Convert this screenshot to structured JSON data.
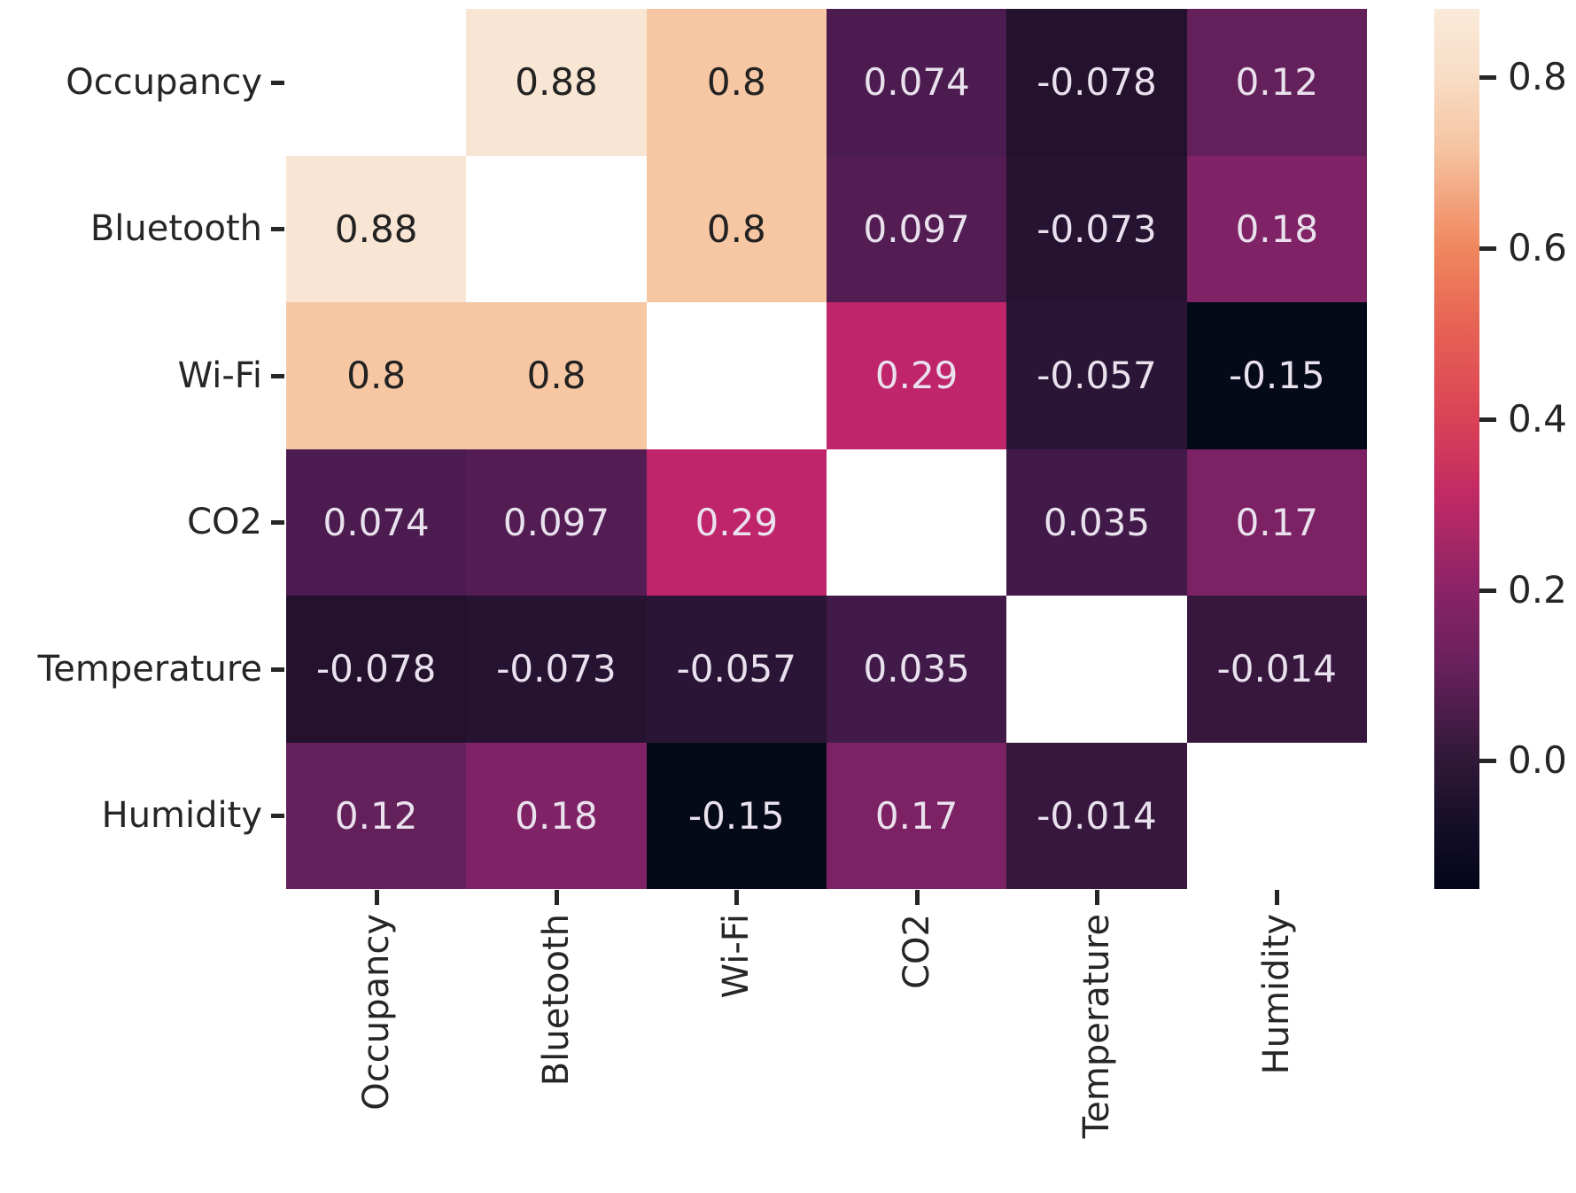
{
  "chart_data": {
    "type": "heatmap",
    "title": "",
    "variables": [
      "Occupancy",
      "Bluetooth",
      "Wi-Fi",
      "CO2",
      "Temperature",
      "Humidity"
    ],
    "y_tick_labels": [
      "Occupancy",
      "Bluetooth",
      "Wi-Fi",
      "CO2",
      "Temperature",
      "Humidity"
    ],
    "x_tick_labels": [
      "Occupancy",
      "Bluetooth",
      "Wi-Fi",
      "CO2",
      "Temperature",
      "Humidity"
    ],
    "matrix": [
      [
        null,
        0.88,
        0.8,
        0.074,
        -0.078,
        0.12
      ],
      [
        0.88,
        null,
        0.8,
        0.097,
        -0.073,
        0.18
      ],
      [
        0.8,
        0.8,
        null,
        0.29,
        -0.057,
        -0.15
      ],
      [
        0.074,
        0.097,
        0.29,
        null,
        0.035,
        0.17
      ],
      [
        -0.078,
        -0.073,
        -0.057,
        0.035,
        null,
        -0.014
      ],
      [
        0.12,
        0.18,
        -0.15,
        0.17,
        -0.014,
        null
      ]
    ],
    "cell_labels": [
      [
        "",
        "0.88",
        "0.8",
        "0.074",
        "-0.078",
        "0.12"
      ],
      [
        "0.88",
        "",
        "0.8",
        "0.097",
        "-0.073",
        "0.18"
      ],
      [
        "0.8",
        "0.8",
        "",
        "0.29",
        "-0.057",
        "-0.15"
      ],
      [
        "0.074",
        "0.097",
        "0.29",
        "",
        "0.035",
        "0.17"
      ],
      [
        "-0.078",
        "-0.073",
        "-0.057",
        "0.035",
        "",
        "-0.014"
      ],
      [
        "0.12",
        "0.18",
        "-0.15",
        "0.17",
        "-0.014",
        ""
      ]
    ],
    "cell_colors": [
      [
        "",
        "#f8e5d3",
        "#f6c7a2",
        "#4c1c50",
        "#23112d",
        "#63205a"
      ],
      [
        "#f8e5d3",
        "",
        "#f6c7a2",
        "#531d54",
        "#261231",
        "#7f2366"
      ],
      [
        "#f6c7a2",
        "#f6c7a2",
        "",
        "#c0246a",
        "#2a1536",
        "#050a18"
      ],
      [
        "#4c1c50",
        "#531d54",
        "#c0246a",
        "",
        "#421a4a",
        "#7b2164"
      ],
      [
        "#23112d",
        "#261231",
        "#2a1536",
        "#421a4a",
        "",
        "#38173f"
      ],
      [
        "#63205a",
        "#7f2366",
        "#050a18",
        "#7b2164",
        "#38173f",
        ""
      ]
    ],
    "masked_diagonal_color": "#ffffff",
    "annotation_dark_text": "#222222",
    "annotation_light_text": "#e9e1ed",
    "dark_text_threshold": 0.5,
    "axis_text_color": "#262626",
    "colorbar": {
      "vmin": -0.15,
      "vmax": 0.88,
      "tick_labels": [
        "0.8",
        "0.6",
        "0.4",
        "0.2",
        "0.0"
      ],
      "tick_values": [
        0.8,
        0.6,
        0.4,
        0.2,
        0.0
      ],
      "gradient_stops": [
        {
          "pos": 0,
          "color": "#faeada"
        },
        {
          "pos": 8,
          "color": "#f8dcc4"
        },
        {
          "pos": 16,
          "color": "#f5c3a0"
        },
        {
          "pos": 27,
          "color": "#f0875f"
        },
        {
          "pos": 37,
          "color": "#e65f53"
        },
        {
          "pos": 47,
          "color": "#d94157"
        },
        {
          "pos": 55,
          "color": "#c22a64"
        },
        {
          "pos": 66,
          "color": "#8a2367"
        },
        {
          "pos": 75,
          "color": "#67205b"
        },
        {
          "pos": 85,
          "color": "#311839"
        },
        {
          "pos": 93,
          "color": "#140e28"
        },
        {
          "pos": 100,
          "color": "#03051a"
        }
      ]
    }
  }
}
